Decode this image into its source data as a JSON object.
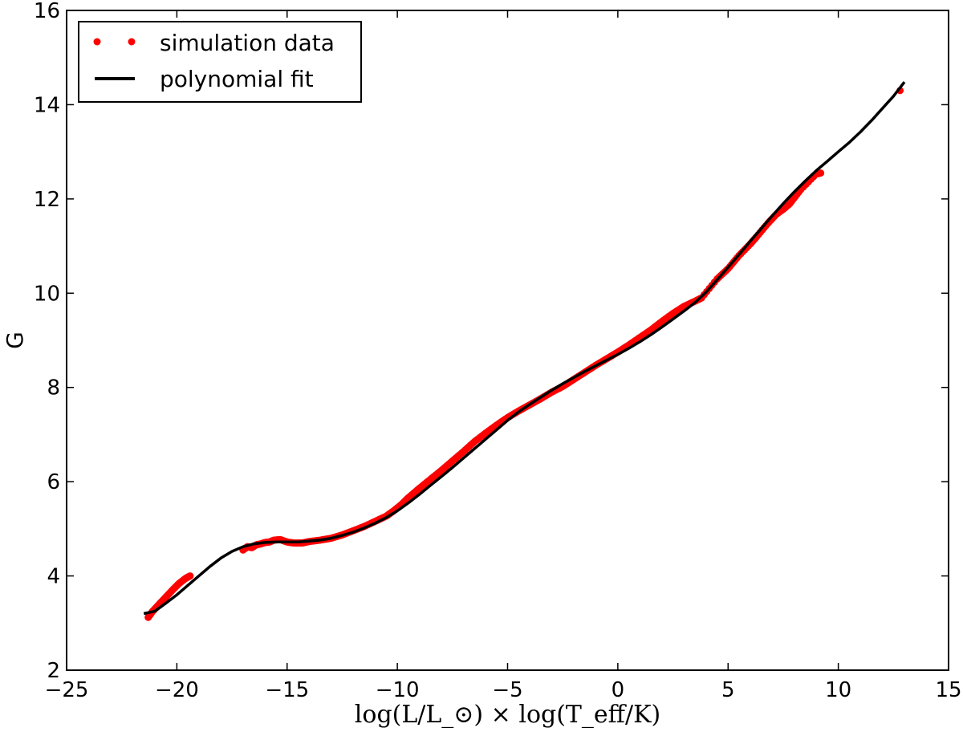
{
  "chart_data": {
    "type": "scatter",
    "title": "",
    "xlabel": "log(L/L_⊙) × log(T_eff/K)",
    "ylabel": "G",
    "xlim": [
      -25,
      15
    ],
    "ylim": [
      2,
      16
    ],
    "xticks": [
      -25,
      -20,
      -15,
      -10,
      -5,
      0,
      5,
      10,
      15
    ],
    "yticks": [
      2,
      4,
      6,
      8,
      10,
      12,
      14,
      16
    ],
    "xtick_labels": [
      "−25",
      "−20",
      "−15",
      "−10",
      "−5",
      "0",
      "5",
      "10",
      "15"
    ],
    "ytick_labels": [
      "2",
      "4",
      "6",
      "8",
      "10",
      "12",
      "14",
      "16"
    ],
    "grid": false,
    "legend_position": "top-left",
    "series": [
      {
        "name": "simulation data",
        "kind": "scatter",
        "color": "#ff0000",
        "x": [
          -21.3,
          -21.1,
          -20.8,
          -20.5,
          -20.2,
          -19.9,
          -19.6,
          -19.4,
          -17.0,
          -16.8,
          -16.6,
          -16.4,
          -16.2,
          -16.0,
          -15.8,
          -15.6,
          -15.3,
          -15.0,
          -14.7,
          -14.3,
          -14.0,
          -13.5,
          -13.0,
          -12.5,
          -12.0,
          -11.5,
          -11.0,
          -10.5,
          -10.2,
          -9.8,
          -9.5,
          -9.0,
          -8.5,
          -8.0,
          -7.5,
          -7.0,
          -6.5,
          -6.0,
          -5.5,
          -5.0,
          -4.5,
          -4.0,
          -3.5,
          -3.0,
          -2.5,
          -2.0,
          -1.5,
          -1.0,
          -0.5,
          0.0,
          0.5,
          1.0,
          1.5,
          2.0,
          2.5,
          3.0,
          3.5,
          3.8,
          4.5,
          5.0,
          5.5,
          6.0,
          6.3,
          6.8,
          7.2,
          7.5,
          7.8,
          8.3,
          9.0,
          9.2,
          12.8
        ],
        "y": [
          3.12,
          3.25,
          3.4,
          3.55,
          3.7,
          3.84,
          3.95,
          4.0,
          4.55,
          4.62,
          4.6,
          4.66,
          4.68,
          4.71,
          4.72,
          4.76,
          4.77,
          4.72,
          4.7,
          4.7,
          4.73,
          4.76,
          4.8,
          4.87,
          4.96,
          5.05,
          5.16,
          5.27,
          5.37,
          5.52,
          5.66,
          5.86,
          6.05,
          6.24,
          6.44,
          6.64,
          6.85,
          7.03,
          7.2,
          7.36,
          7.5,
          7.63,
          7.76,
          7.9,
          8.02,
          8.17,
          8.32,
          8.47,
          8.61,
          8.75,
          8.9,
          9.06,
          9.22,
          9.4,
          9.57,
          9.72,
          9.83,
          9.9,
          10.3,
          10.52,
          10.8,
          11.04,
          11.2,
          11.48,
          11.68,
          11.78,
          11.9,
          12.2,
          12.53,
          12.55,
          14.3
        ]
      },
      {
        "name": "polynomial fit",
        "kind": "line",
        "color": "#000000",
        "x": [
          -21.5,
          -21.0,
          -20.5,
          -20.0,
          -19.5,
          -19.0,
          -18.5,
          -18.0,
          -17.5,
          -17.0,
          -16.5,
          -16.0,
          -15.5,
          -15.0,
          -14.5,
          -14.0,
          -13.5,
          -13.0,
          -12.5,
          -12.0,
          -11.5,
          -11.0,
          -10.5,
          -10.0,
          -9.5,
          -9.0,
          -8.5,
          -8.0,
          -7.5,
          -7.0,
          -6.5,
          -6.0,
          -5.5,
          -5.0,
          -4.5,
          -4.0,
          -3.5,
          -3.0,
          -2.5,
          -2.0,
          -1.5,
          -1.0,
          -0.5,
          0.0,
          0.5,
          1.0,
          1.5,
          2.0,
          2.5,
          3.0,
          3.5,
          4.0,
          4.5,
          5.0,
          5.5,
          6.0,
          6.5,
          7.0,
          7.5,
          8.0,
          8.5,
          9.0,
          9.5,
          10.0,
          10.5,
          11.0,
          11.5,
          12.0,
          12.5,
          13.0
        ],
        "y": [
          3.2,
          3.25,
          3.42,
          3.6,
          3.8,
          4.0,
          4.2,
          4.38,
          4.52,
          4.62,
          4.68,
          4.71,
          4.72,
          4.72,
          4.72,
          4.74,
          4.76,
          4.8,
          4.86,
          4.93,
          5.02,
          5.12,
          5.24,
          5.38,
          5.55,
          5.73,
          5.92,
          6.11,
          6.3,
          6.5,
          6.7,
          6.9,
          7.1,
          7.3,
          7.48,
          7.64,
          7.79,
          7.94,
          8.08,
          8.21,
          8.34,
          8.46,
          8.58,
          8.7,
          8.83,
          8.97,
          9.12,
          9.28,
          9.45,
          9.62,
          9.8,
          10.02,
          10.28,
          10.55,
          10.82,
          11.1,
          11.37,
          11.64,
          11.9,
          12.15,
          12.38,
          12.6,
          12.8,
          13.0,
          13.2,
          13.42,
          13.66,
          13.92,
          14.18,
          14.48
        ]
      }
    ]
  }
}
